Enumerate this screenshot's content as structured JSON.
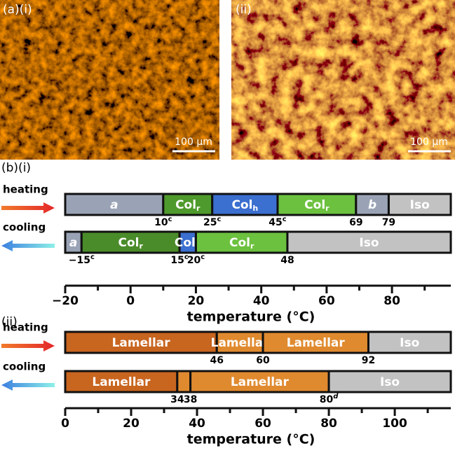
{
  "micrographs": [
    {
      "label": "(a)(i)",
      "scale_bar": "100 μm"
    },
    {
      "label": "(ii)",
      "scale_bar": "100 μm"
    }
  ],
  "chart_data": [
    {
      "type": "phase",
      "title": "(b)(i)",
      "xlabel": "temperature (°C)",
      "xlim": [
        -20,
        98
      ],
      "xticks": [
        {
          "value": -20,
          "label": "−20"
        },
        0,
        20,
        40,
        60,
        80
      ],
      "xminor": [
        -10,
        10,
        30,
        50,
        70,
        90
      ],
      "rows": [
        {
          "name": "heating",
          "segments": [
            {
              "label": "a",
              "italic": true,
              "color": "#9aa3b6"
            },
            {
              "label": "Col",
              "sub": "r",
              "color": "#4f9a2c"
            },
            {
              "label": "Col",
              "sub": "h",
              "color": "#3b6fd0"
            },
            {
              "label": "Col",
              "sub": "r",
              "color": "#6cc13f"
            },
            {
              "label": "b",
              "italic": true,
              "color": "#9aa3b6"
            },
            {
              "label": "Iso",
              "color": "#c2c2c2"
            }
          ],
          "boundaries": [
            {
              "value": 10,
              "sup": "c"
            },
            {
              "value": 25,
              "sup": "c"
            },
            {
              "value": 45,
              "sup": "c"
            },
            {
              "value": 69
            },
            {
              "value": 79
            }
          ]
        },
        {
          "name": "cooling",
          "segments": [
            {
              "label": "a",
              "italic": true,
              "color": "#9aa3b6"
            },
            {
              "label": "Col",
              "sub": "r",
              "color": "#4a8c2a"
            },
            {
              "label": "Col",
              "sub": "h",
              "color": "#3b6fd0"
            },
            {
              "label": "Col",
              "sub": "r",
              "color": "#6cc13f"
            },
            {
              "label": "Iso",
              "color": "#c2c2c2"
            }
          ],
          "boundaries": [
            {
              "value": -15,
              "label": "−15",
              "sup": "c"
            },
            {
              "value": 15,
              "sup": "c"
            },
            {
              "value": 20,
              "sup": "c"
            },
            {
              "value": 48
            }
          ]
        }
      ]
    },
    {
      "type": "phase",
      "title": "(ii)",
      "xlabel": "temperature (°C)",
      "xlim": [
        0,
        117
      ],
      "xticks": [
        0,
        20,
        40,
        60,
        80,
        100
      ],
      "xminor": [
        10,
        30,
        50,
        70,
        90,
        110
      ],
      "rows": [
        {
          "name": "heating",
          "segments": [
            {
              "label": "Lamellar",
              "color": "#c8651f"
            },
            {
              "label": "Lamellar",
              "color": "#e08a2f"
            },
            {
              "label": "Lamellar",
              "color": "#e08a2f"
            },
            {
              "label": "Iso",
              "color": "#c2c2c2"
            }
          ],
          "boundaries": [
            {
              "value": 46
            },
            {
              "value": 60
            },
            {
              "value": 92
            }
          ]
        },
        {
          "name": "cooling",
          "segments": [
            {
              "label": "Lamellar",
              "color": "#c8651f"
            },
            {
              "label": null,
              "color": "#e08a2f"
            },
            {
              "label": "Lamellar",
              "color": "#e08a2f"
            },
            {
              "label": "Iso",
              "color": "#c2c2c2"
            }
          ],
          "boundaries": [
            {
              "value": 34
            },
            {
              "value": 38
            },
            {
              "value": 80,
              "sup": "d"
            }
          ]
        }
      ]
    }
  ]
}
